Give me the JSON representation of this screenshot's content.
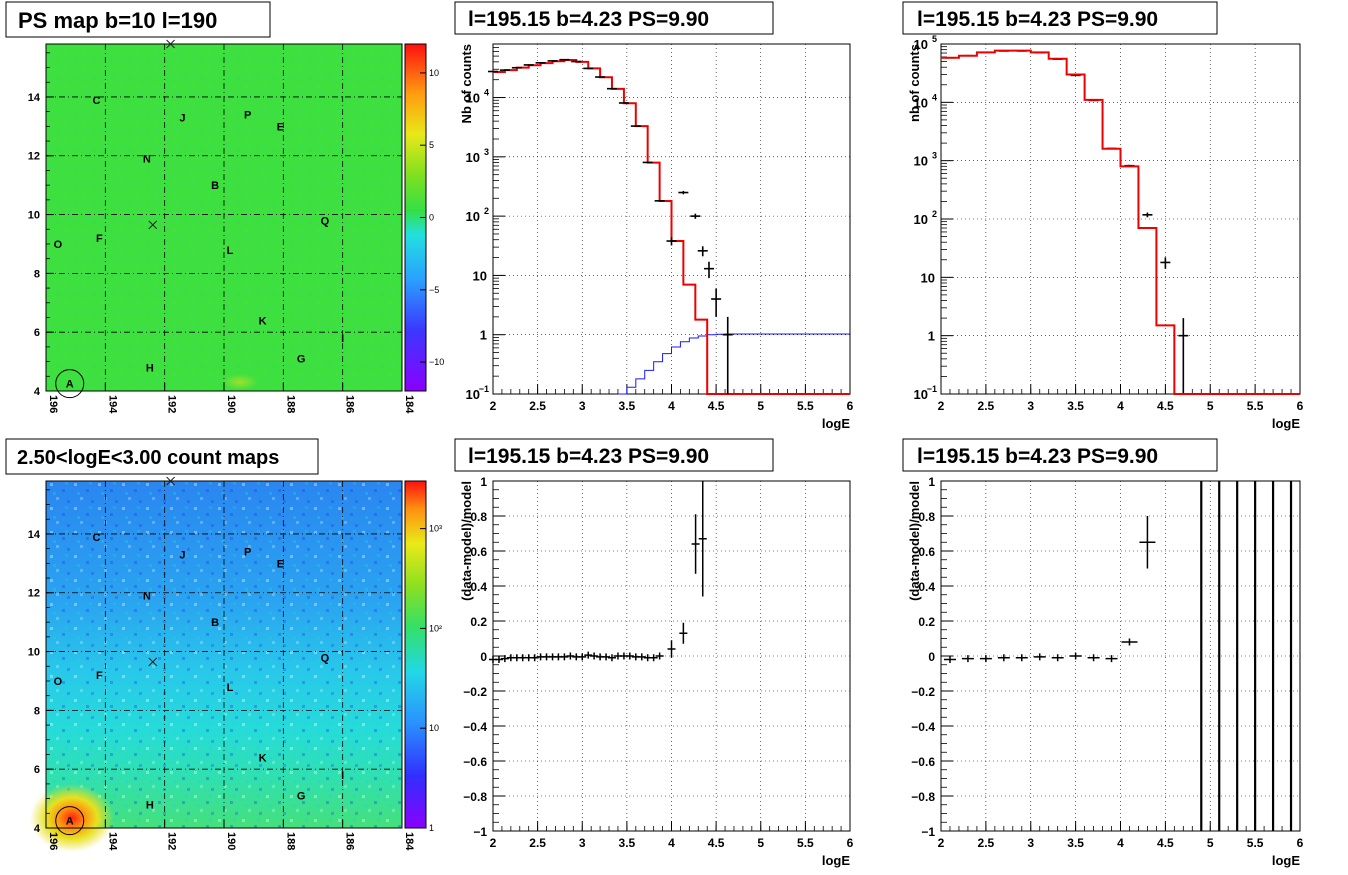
{
  "panels": {
    "map_ps": {
      "title": "PS map b=10 l=190",
      "x_ticks": [
        "196",
        "194",
        "192",
        "190",
        "188",
        "186",
        "184"
      ],
      "y_ticks": [
        "4",
        "6",
        "8",
        "10",
        "12",
        "14"
      ],
      "colorbar_ticks": [
        "10",
        "5",
        "0",
        "−5",
        "−10"
      ]
    },
    "map_counts": {
      "title": "2.50<logE<3.00 count maps",
      "x_ticks": [
        "196",
        "194",
        "192",
        "190",
        "188",
        "186",
        "184"
      ],
      "y_ticks": [
        "4",
        "6",
        "8",
        "10",
        "12",
        "14"
      ],
      "colorbar_ticks": [
        "10³",
        "10²",
        "10",
        "1"
      ]
    },
    "spec_left": {
      "title": "l=195.15 b=4.23 PS=9.90"
    },
    "spec_right": {
      "title": "l=195.15 b=4.23 PS=9.90"
    },
    "res_left": {
      "title": "l=195.15 b=4.23 PS=9.90"
    },
    "res_right": {
      "title": "l=195.15 b=4.23 PS=9.90"
    }
  },
  "source_labels": [
    "A",
    "B",
    "C",
    "E",
    "F",
    "G",
    "H",
    "I",
    "J",
    "K",
    "L",
    "N",
    "O",
    "P",
    "Q"
  ],
  "colors": {
    "model": "#ee0000",
    "component": "#1a1aff",
    "data": "#000000",
    "map_green": "#33e044",
    "grid": "#000000"
  },
  "chart_data": [
    {
      "type": "heatmap",
      "title": "PS map b=10 l=190",
      "xlim": [
        196,
        184
      ],
      "ylim": [
        4,
        15.8
      ],
      "colorbar_range": [
        -12,
        12
      ],
      "sources": [
        {
          "label": "A",
          "l": 195.2,
          "b": 4.25
        },
        {
          "label": "B",
          "l": 190.3,
          "b": 11.0
        },
        {
          "label": "C",
          "l": 194.3,
          "b": 13.9
        },
        {
          "label": "E",
          "l": 188.1,
          "b": 13.0
        },
        {
          "label": "F",
          "l": 194.2,
          "b": 9.2
        },
        {
          "label": "G",
          "l": 187.4,
          "b": 5.1
        },
        {
          "label": "H",
          "l": 192.5,
          "b": 4.8
        },
        {
          "label": "I",
          "l": 186.0,
          "b": 5.8
        },
        {
          "label": "J",
          "l": 191.4,
          "b": 13.3
        },
        {
          "label": "K",
          "l": 188.7,
          "b": 6.4
        },
        {
          "label": "L",
          "l": 189.8,
          "b": 8.8
        },
        {
          "label": "N",
          "l": 192.6,
          "b": 11.9
        },
        {
          "label": "O",
          "l": 195.6,
          "b": 9.0
        },
        {
          "label": "P",
          "l": 189.2,
          "b": 13.4
        },
        {
          "label": "Q",
          "l": 186.6,
          "b": 9.8
        }
      ]
    },
    {
      "type": "heatmap",
      "title": "2.50<logE<3.00 count maps",
      "xlim": [
        196,
        184
      ],
      "ylim": [
        4,
        15.8
      ],
      "colorbar_range": [
        1,
        3000
      ],
      "color_scale": "log"
    },
    {
      "type": "line",
      "title": "l=195.15 b=4.23 PS=9.90",
      "xlabel": "logE",
      "ylabel": "Nb of counts",
      "xlim": [
        2,
        6
      ],
      "ylim": [
        0.1,
        80000
      ],
      "yscale": "log",
      "model_bins": [
        2,
        2.133,
        2.267,
        2.4,
        2.533,
        2.667,
        2.8,
        2.933,
        3.067,
        3.2,
        3.333,
        3.467,
        3.6,
        3.733,
        3.867,
        4.0,
        4.133,
        4.267,
        4.4,
        4.533,
        4.667,
        4.8,
        6.0
      ],
      "model_values": [
        27000,
        29000,
        32000,
        35000,
        38000,
        41000,
        43000,
        40000,
        31000,
        22000,
        14000,
        8000,
        3300,
        800,
        180,
        38,
        7,
        1.8,
        0.1,
        0.1,
        0.1,
        0.1
      ],
      "component_bins": [
        3.4,
        3.5,
        3.6,
        3.7,
        3.8,
        3.9,
        4.0,
        4.1,
        4.2,
        4.3,
        4.4,
        4.5,
        4.6,
        6.0
      ],
      "component_values": [
        0.1,
        0.13,
        0.18,
        0.25,
        0.35,
        0.48,
        0.62,
        0.76,
        0.88,
        0.95,
        1.0,
        1.02,
        1.03
      ],
      "data_points": [
        {
          "x": 2.0,
          "y": 27500
        },
        {
          "x": 2.133,
          "y": 29000
        },
        {
          "x": 2.267,
          "y": 31800
        },
        {
          "x": 2.4,
          "y": 35500
        },
        {
          "x": 2.533,
          "y": 38500
        },
        {
          "x": 2.667,
          "y": 41500
        },
        {
          "x": 2.8,
          "y": 43500
        },
        {
          "x": 2.933,
          "y": 40500
        },
        {
          "x": 3.067,
          "y": 31000
        },
        {
          "x": 3.2,
          "y": 22200
        },
        {
          "x": 3.333,
          "y": 14100
        },
        {
          "x": 3.467,
          "y": 8100
        },
        {
          "x": 3.6,
          "y": 3300
        },
        {
          "x": 3.733,
          "y": 805
        },
        {
          "x": 3.867,
          "y": 181
        },
        {
          "x": 4.0,
          "y": 38,
          "err": 6
        },
        {
          "x": 4.133,
          "y": 250,
          "err": 16
        },
        {
          "x": 4.267,
          "y": 100,
          "err": 10
        },
        {
          "x": 4.35,
          "y": 26,
          "err": 5
        },
        {
          "x": 4.42,
          "y": 13,
          "err": 4
        },
        {
          "x": 4.5,
          "y": 4,
          "err": 2
        },
        {
          "x": 4.63,
          "y": 1,
          "err": 1
        }
      ]
    },
    {
      "type": "line",
      "title": "l=195.15 b=4.23 PS=9.90",
      "xlabel": "logE",
      "ylabel": "nb of counts",
      "xlim": [
        2,
        6
      ],
      "ylim": [
        0.1,
        100000
      ],
      "yscale": "log",
      "model_bins": [
        2,
        2.2,
        2.4,
        2.6,
        2.8,
        3.0,
        3.2,
        3.4,
        3.6,
        3.8,
        4.0,
        4.2,
        4.4,
        4.6,
        6.0
      ],
      "model_values": [
        58000,
        63000,
        72000,
        77000,
        77000,
        72000,
        56000,
        30000,
        11000,
        1600,
        800,
        70,
        1.5,
        0.1
      ],
      "data_points": [
        {
          "x": 2.1,
          "y": 58000
        },
        {
          "x": 2.3,
          "y": 63000
        },
        {
          "x": 2.5,
          "y": 72000
        },
        {
          "x": 2.7,
          "y": 76000
        },
        {
          "x": 2.9,
          "y": 76000
        },
        {
          "x": 3.1,
          "y": 71000
        },
        {
          "x": 3.3,
          "y": 55000
        },
        {
          "x": 3.5,
          "y": 29000
        },
        {
          "x": 3.7,
          "y": 10800
        },
        {
          "x": 3.9,
          "y": 1620
        },
        {
          "x": 4.1,
          "y": 820,
          "err": 30
        },
        {
          "x": 4.3,
          "y": 118,
          "err": 11
        },
        {
          "x": 4.5,
          "y": 18,
          "err": 4
        },
        {
          "x": 4.7,
          "y": 1,
          "err": 1
        }
      ]
    },
    {
      "type": "scatter",
      "title": "l=195.15 b=4.23 PS=9.90",
      "xlabel": "logE",
      "ylabel": "(data-model)/model",
      "xlim": [
        2,
        6
      ],
      "ylim": [
        -1,
        1
      ],
      "points": [
        {
          "x": 2.0,
          "y": -0.02
        },
        {
          "x": 2.067,
          "y": -0.02
        },
        {
          "x": 2.133,
          "y": -0.015
        },
        {
          "x": 2.2,
          "y": -0.01
        },
        {
          "x": 2.267,
          "y": -0.01
        },
        {
          "x": 2.333,
          "y": -0.01
        },
        {
          "x": 2.4,
          "y": -0.01
        },
        {
          "x": 2.467,
          "y": -0.01
        },
        {
          "x": 2.533,
          "y": -0.005
        },
        {
          "x": 2.6,
          "y": -0.005
        },
        {
          "x": 2.667,
          "y": -0.005
        },
        {
          "x": 2.733,
          "y": -0.005
        },
        {
          "x": 2.8,
          "y": -0.005
        },
        {
          "x": 2.867,
          "y": 0.0
        },
        {
          "x": 2.933,
          "y": -0.005
        },
        {
          "x": 3.0,
          "y": -0.005
        },
        {
          "x": 3.067,
          "y": 0.005
        },
        {
          "x": 3.133,
          "y": 0.0
        },
        {
          "x": 3.2,
          "y": -0.005
        },
        {
          "x": 3.267,
          "y": -0.005
        },
        {
          "x": 3.333,
          "y": -0.01
        },
        {
          "x": 3.4,
          "y": 0.0
        },
        {
          "x": 3.467,
          "y": 0.0
        },
        {
          "x": 3.533,
          "y": 0.0
        },
        {
          "x": 3.6,
          "y": -0.005
        },
        {
          "x": 3.667,
          "y": -0.005
        },
        {
          "x": 3.733,
          "y": -0.01
        },
        {
          "x": 3.8,
          "y": -0.01
        },
        {
          "x": 3.867,
          "y": 0.0
        },
        {
          "x": 4.0,
          "y": 0.04,
          "err": 0.05
        },
        {
          "x": 4.133,
          "y": 0.13,
          "err": 0.06
        },
        {
          "x": 4.27,
          "y": 0.64,
          "err": 0.17
        },
        {
          "x": 4.35,
          "y": 0.67,
          "err": 0.33
        }
      ]
    },
    {
      "type": "scatter",
      "title": "l=195.15 b=4.23 PS=9.90",
      "xlabel": "logE",
      "ylabel": "(data-model)/model",
      "xlim": [
        2,
        6
      ],
      "ylim": [
        -1,
        1
      ],
      "points": [
        {
          "x": 2.1,
          "y": -0.02
        },
        {
          "x": 2.3,
          "y": -0.015
        },
        {
          "x": 2.5,
          "y": -0.015
        },
        {
          "x": 2.7,
          "y": -0.01
        },
        {
          "x": 2.9,
          "y": -0.01
        },
        {
          "x": 3.1,
          "y": -0.005
        },
        {
          "x": 3.3,
          "y": -0.01
        },
        {
          "x": 3.5,
          "y": 0.0
        },
        {
          "x": 3.7,
          "y": -0.01
        },
        {
          "x": 3.9,
          "y": -0.015
        },
        {
          "x": 4.1,
          "y": 0.08,
          "err": 0.02
        },
        {
          "x": 4.3,
          "y": 0.65,
          "err": 0.15
        }
      ],
      "vertical_bars_x": [
        4.9,
        5.1,
        5.3,
        5.5,
        5.7,
        5.9
      ]
    }
  ]
}
